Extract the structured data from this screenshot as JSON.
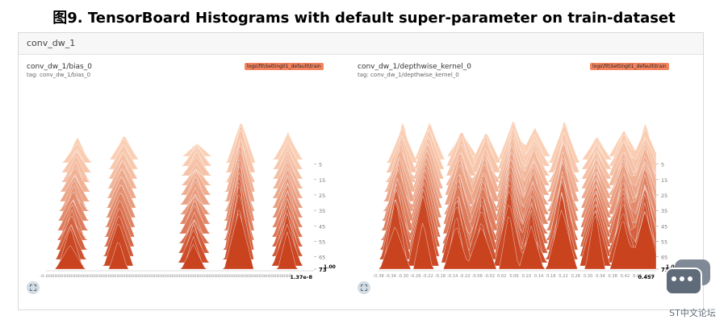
{
  "figure_title": "图9. TensorBoard Histograms with default super-parameter on train-dataset",
  "section_title": "conv_dw_1",
  "colors": {
    "back": "#fbd0b6",
    "front": "#c9431f",
    "fit_icon": "#d3dce3",
    "badge": "#f4845f"
  },
  "chart_data": [
    {
      "type": "histogram-offset",
      "name": "conv_dw_1/bias_0",
      "tag": "tag: conv_dw_1/bias_0",
      "run": "logs\\fit\\Setting01_default\\train",
      "step_ticks": [
        "5",
        "15",
        "25",
        "35",
        "45",
        "55",
        "65",
        "73"
      ],
      "step_range": [
        0,
        73
      ],
      "x_tick_text": "-0.00000000000000000000000000000000000000000000000000000000000000000000000000000000000",
      "x_max_label": "1.37e-8",
      "y_max_label": "1.00",
      "peak_centers": [
        0.09,
        0.27,
        0.55,
        0.72,
        0.9
      ],
      "peak_heights": [
        0.45,
        0.52,
        0.42,
        0.95,
        0.58
      ]
    },
    {
      "type": "histogram-offset",
      "name": "conv_dw_1/depthwise_kernel_0",
      "tag": "tag: conv_dw_1/depthwise_kernel_0",
      "run": "logs\\fit\\Setting01_default\\train",
      "step_ticks": [
        "5",
        "15",
        "25",
        "35",
        "45",
        "55",
        "65",
        "73"
      ],
      "step_range": [
        0,
        73
      ],
      "x_ticks": [
        "-0.38",
        "-0.34",
        "-0.30",
        "-0.26",
        "-0.22",
        "-0.18",
        "-0.14",
        "-0.10",
        "-0.06",
        "-0.02",
        "0.02",
        "0.06",
        "0.10",
        "0.14",
        "0.18",
        "0.22",
        "0.26",
        "0.30",
        "0.34",
        "0.38",
        "0.42",
        "0.46",
        "0.50"
      ],
      "x_max_label": "0.457",
      "y_max_label": "1.00",
      "peak_centers": [
        0.06,
        0.16,
        0.28,
        0.37,
        0.47,
        0.55,
        0.66,
        0.78,
        0.88,
        0.96
      ],
      "peak_heights": [
        0.8,
        0.85,
        0.75,
        0.7,
        0.9,
        0.65,
        0.88,
        0.82,
        0.7,
        0.78
      ]
    }
  ],
  "watermark": {
    "text": "ST中文论坛"
  }
}
